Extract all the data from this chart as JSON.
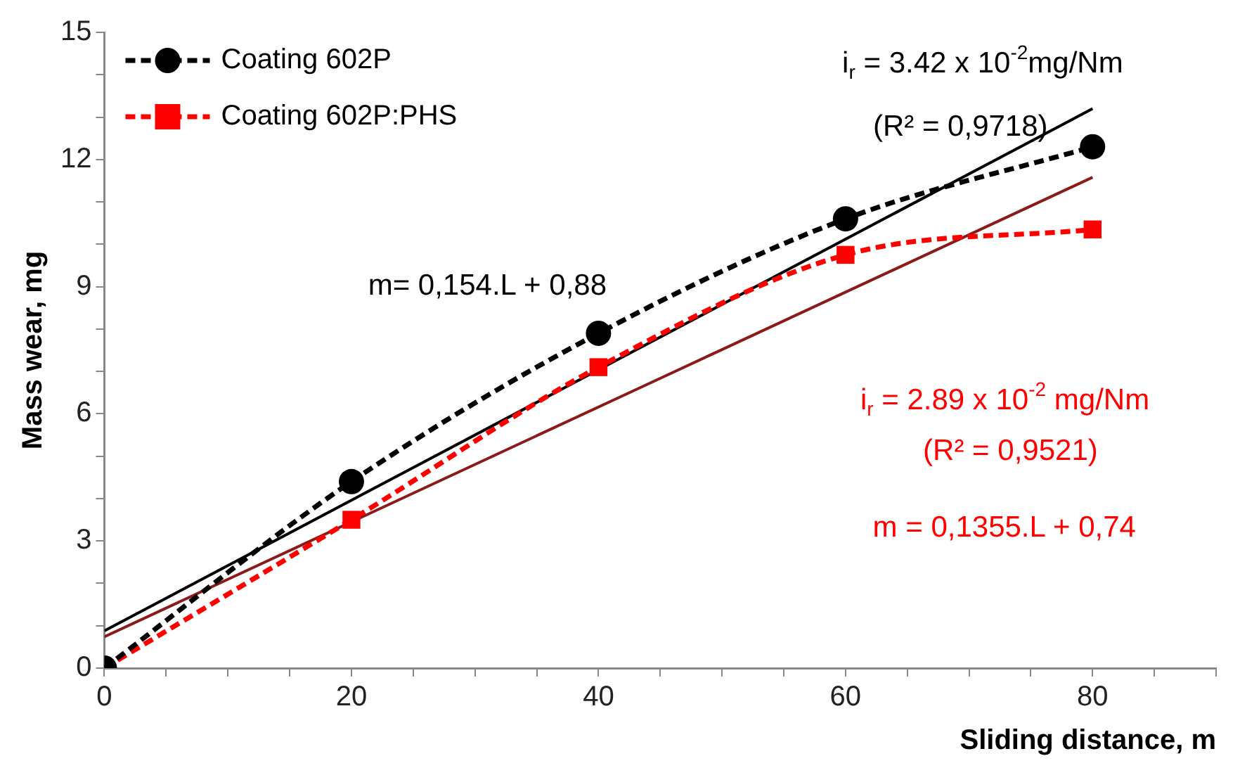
{
  "chart_data": {
    "type": "line",
    "xlabel": "Sliding distance, m",
    "ylabel": "Mass wear, mg",
    "xlim": [
      0,
      90
    ],
    "ylim": [
      0,
      15
    ],
    "xticks": [
      0,
      {
        "value": 5,
        "label": null
      },
      {
        "value": 10,
        "label": null
      },
      {
        "value": 15,
        "label": null
      },
      20,
      {
        "value": 25,
        "label": null
      },
      {
        "value": 30,
        "label": null
      },
      {
        "value": 35,
        "label": null
      },
      40,
      {
        "value": 45,
        "label": null
      },
      {
        "value": 50,
        "label": null
      },
      {
        "value": 55,
        "label": null
      },
      60,
      {
        "value": 65,
        "label": null
      },
      {
        "value": 70,
        "label": null
      },
      {
        "value": 75,
        "label": null
      },
      80,
      {
        "value": 85,
        "label": null
      },
      {
        "value": 90,
        "label": null
      }
    ],
    "yticks": [
      0,
      {
        "value": 1,
        "label": null
      },
      {
        "value": 2,
        "label": null
      },
      3,
      {
        "value": 4,
        "label": null
      },
      {
        "value": 5,
        "label": null
      },
      6,
      {
        "value": 7,
        "label": null
      },
      {
        "value": 8,
        "label": null
      },
      9,
      {
        "value": 10,
        "label": null
      },
      {
        "value": 11,
        "label": null
      },
      12,
      {
        "value": 13,
        "label": null
      },
      {
        "value": 14,
        "label": null
      },
      15
    ],
    "grid": false,
    "legend": "top left",
    "series": [
      {
        "name": "Coating 602P",
        "color": "#000000",
        "x": [
          0,
          20,
          40,
          60,
          80
        ],
        "values": [
          0,
          4.4,
          7.9,
          10.6,
          12.3
        ],
        "marker": "circle",
        "line_style": "dashed"
      },
      {
        "name": "Coating 602P:PHS",
        "color": "#ff0000",
        "x": [
          0,
          20,
          40,
          60,
          80
        ],
        "values": [
          0,
          3.5,
          7.1,
          9.75,
          10.35
        ],
        "marker": "square",
        "line_style": "dashed"
      },
      {
        "type": "line",
        "color": "#000000",
        "x": [
          0,
          80
        ],
        "values": [
          0.88,
          13.2
        ],
        "marker": "none",
        "line_style": "solid"
      },
      {
        "type": "line",
        "color": "#8b1a1a",
        "x": [
          0,
          80
        ],
        "values": [
          0.74,
          11.58
        ],
        "marker": "none",
        "line_style": "solid"
      }
    ],
    "annotations": [
      "i$_{r}$ = 3.42 x 10$^{-2}$mg/Nm",
      "(R² = 0,9718)",
      "m= 0,154.L + 0,88",
      "i$_{r}$ = 2.89 x 10$^{-2}$ mg/Nm",
      "(R² = 0,9521)",
      "m = 0,1355.L + 0,74"
    ]
  }
}
